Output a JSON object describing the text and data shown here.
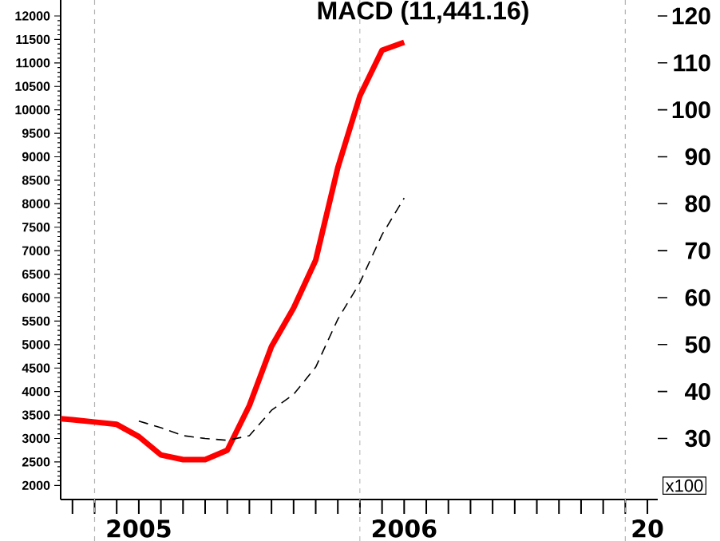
{
  "chart_data": {
    "type": "line",
    "title": "MACD (11,441.16)",
    "y2label": "x100",
    "x": [
      "2004-11-15",
      "2004-12",
      "2005-01",
      "2005-02",
      "2005-03",
      "2005-04",
      "2005-05",
      "2005-06",
      "2005-07",
      "2005-08",
      "2005-09",
      "2005-10",
      "2005-11",
      "2005-12",
      "2006-01",
      "2006-02",
      "2006-03"
    ],
    "series": [
      {
        "color": "#ff0000",
        "line_style": "solid",
        "values": [
          3420,
          3400,
          3350,
          3300,
          3040,
          2650,
          2550,
          2550,
          2750,
          3700,
          4960,
          5780,
          6800,
          8770,
          10300,
          11270,
          11440
        ]
      },
      {
        "color": "#000000",
        "line_style": "dashed",
        "values": [
          null,
          null,
          null,
          null,
          3370,
          3230,
          3060,
          3000,
          2960,
          3060,
          3600,
          3940,
          4520,
          5540,
          6320,
          7340,
          8120
        ]
      }
    ],
    "xlim": [
      "2004-11-15",
      "2007-02-15"
    ],
    "xticks": [
      {
        "value": "2005-03",
        "label": "2005"
      },
      {
        "value": "2006-03",
        "label": "2006"
      },
      {
        "value": "2007-02",
        "label": "20"
      }
    ],
    "ref_lines": [
      {
        "axis": "x",
        "value": "2005-01",
        "color": "#b2b2b2",
        "line_style": "dashed"
      },
      {
        "axis": "x",
        "value": "2006-01",
        "color": "#b2b2b2",
        "line_style": "dashed"
      },
      {
        "axis": "x",
        "value": "2007-01",
        "color": "#b2b2b2",
        "line_style": "dashed"
      }
    ],
    "ylim": [
      1700,
      12340
    ],
    "yticks": [
      2000,
      2500,
      3000,
      3500,
      4000,
      4500,
      5000,
      5500,
      6000,
      6500,
      7000,
      7500,
      8000,
      8500,
      9000,
      9500,
      10000,
      10500,
      11000,
      11500,
      12000
    ],
    "y2lim": [
      17,
      123.4
    ],
    "y2ticks": [
      30,
      40,
      50,
      60,
      70,
      80,
      90,
      100,
      110,
      120
    ],
    "marker": "none"
  }
}
